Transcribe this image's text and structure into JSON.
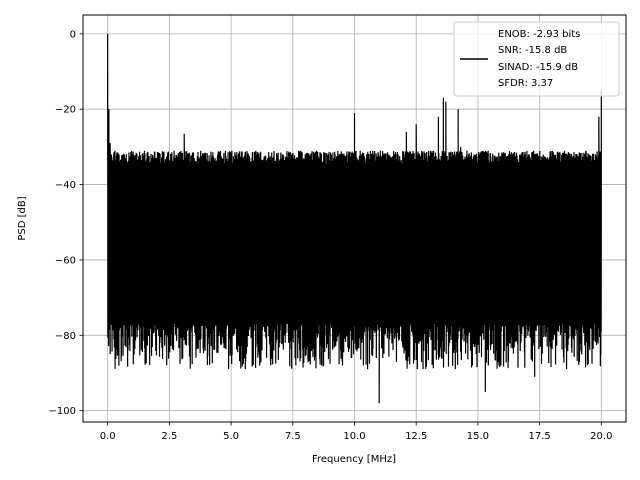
{
  "chart_data": {
    "type": "line",
    "title": "",
    "xlabel": "Frequency [MHz]",
    "ylabel": "PSD [dB]",
    "xlim": [
      -1,
      21
    ],
    "ylim": [
      -103,
      5
    ],
    "xticks": [
      0.0,
      2.5,
      5.0,
      7.5,
      10.0,
      12.5,
      15.0,
      17.5,
      20.0
    ],
    "xtick_labels": [
      "0.0",
      "2.5",
      "5.0",
      "7.5",
      "10.0",
      "12.5",
      "15.0",
      "17.5",
      "20.0"
    ],
    "yticks": [
      0,
      -20,
      -40,
      -60,
      -80,
      -100
    ],
    "ytick_labels": [
      "0",
      "−20",
      "−40",
      "−60",
      "−80",
      "−100"
    ],
    "grid": true,
    "legend_position": "top-right",
    "legend_lines": [
      "ENOB: -2.93 bits",
      "SNR: -15.8 dB",
      "SINAD: -15.9 dB",
      "SFDR: 3.37"
    ],
    "series": [
      {
        "color": "#000000",
        "noise_floor": {
          "x_range": [
            0,
            20
          ],
          "upper_envelope_db": -31,
          "lower_envelope_db": -77,
          "typical_min_db": -85
        },
        "points": [
          {
            "x": 0.0,
            "y": 0.0
          },
          {
            "x": 0.05,
            "y": -20
          },
          {
            "x": 0.1,
            "y": -29
          },
          {
            "x": 3.1,
            "y": -26.5
          },
          {
            "x": 10.0,
            "y": -21
          },
          {
            "x": 11.0,
            "y": -98
          },
          {
            "x": 12.1,
            "y": -26
          },
          {
            "x": 12.5,
            "y": -24
          },
          {
            "x": 13.4,
            "y": -22
          },
          {
            "x": 13.6,
            "y": -17
          },
          {
            "x": 13.7,
            "y": -18
          },
          {
            "x": 14.2,
            "y": -20
          },
          {
            "x": 14.3,
            "y": -30
          },
          {
            "x": 15.1,
            "y": -32
          },
          {
            "x": 15.3,
            "y": -95
          },
          {
            "x": 17.3,
            "y": -91
          },
          {
            "x": 19.9,
            "y": -22
          },
          {
            "x": 20.0,
            "y": -15
          }
        ]
      }
    ]
  }
}
